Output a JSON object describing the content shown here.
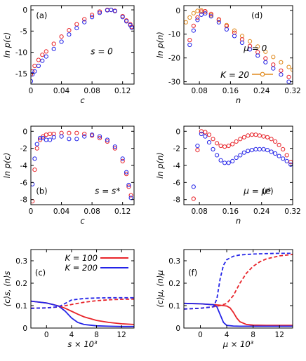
{
  "chart_data": [
    {
      "panel": "a",
      "type": "scatter",
      "label": "(a)",
      "annotation": "s = 0",
      "xlabel": "c",
      "ylabel": "ln p(c)",
      "xlim": [
        0,
        0.135
      ],
      "ylim": [
        -17.5,
        1
      ],
      "xticks": [
        "0",
        "0.04",
        "0.08",
        "0.12"
      ],
      "xtick_values": [
        0,
        0.04,
        0.08,
        0.12
      ],
      "yticks": [
        "0",
        "-5",
        "-10",
        "-15"
      ],
      "ytick_values": [
        0,
        -5,
        -10,
        -15
      ],
      "series": [
        {
          "color": "#e8242a",
          "marker": "circle",
          "x": [
            0.0,
            0.002,
            0.005,
            0.01,
            0.015,
            0.02,
            0.03,
            0.04,
            0.05,
            0.06,
            0.07,
            0.08,
            0.09,
            0.1,
            0.105,
            0.11,
            0.12,
            0.125,
            0.13,
            0.132
          ],
          "y": [
            -15.2,
            -14.5,
            -13.2,
            -11.8,
            -10.6,
            -9.8,
            -8.0,
            -6.3,
            -4.8,
            -3.4,
            -2.2,
            -1.2,
            -0.4,
            0.0,
            0.0,
            -0.2,
            -1.5,
            -2.5,
            -3.4,
            -4.0
          ]
        },
        {
          "color": "#2424e8",
          "marker": "circle",
          "x": [
            0.0,
            0.002,
            0.005,
            0.01,
            0.015,
            0.02,
            0.03,
            0.04,
            0.05,
            0.06,
            0.07,
            0.08,
            0.09,
            0.1,
            0.105,
            0.11,
            0.12,
            0.125,
            0.13,
            0.132
          ],
          "y": [
            -16.8,
            -15.2,
            -14.5,
            -13.2,
            -12.0,
            -11.0,
            -9.2,
            -7.5,
            -5.8,
            -4.3,
            -2.9,
            -1.7,
            -0.7,
            -0.1,
            0.0,
            -0.3,
            -1.7,
            -2.7,
            -3.6,
            -4.2
          ]
        }
      ]
    },
    {
      "panel": "b",
      "type": "scatter",
      "label": "(b)",
      "annotation": "s = s*",
      "xlabel": "c",
      "ylabel": "ln p(c)",
      "xlim": [
        0,
        0.135
      ],
      "ylim": [
        -8.6,
        0.6
      ],
      "xticks": [
        "0",
        "0.04",
        "0.08",
        "0.12"
      ],
      "xtick_values": [
        0,
        0.04,
        0.08,
        0.12
      ],
      "yticks": [
        "0",
        "-2",
        "-4",
        "-6",
        "-8"
      ],
      "ytick_values": [
        0,
        -2,
        -4,
        -6,
        -8
      ],
      "series": [
        {
          "color": "#e8242a",
          "marker": "circle",
          "x": [
            0.002,
            0.005,
            0.008,
            0.012,
            0.016,
            0.02,
            0.025,
            0.03,
            0.04,
            0.05,
            0.06,
            0.07,
            0.08,
            0.09,
            0.1,
            0.11,
            0.12,
            0.125,
            0.128,
            0.131
          ],
          "y": [
            -8.2,
            -4.5,
            -2.0,
            -1.0,
            -0.6,
            -0.4,
            -0.3,
            -0.3,
            -0.2,
            -0.2,
            -0.2,
            -0.3,
            -0.5,
            -0.8,
            -1.2,
            -2.0,
            -3.5,
            -5.0,
            -6.5,
            -7.5
          ]
        },
        {
          "color": "#2424e8",
          "marker": "circle",
          "x": [
            0.002,
            0.005,
            0.008,
            0.012,
            0.016,
            0.02,
            0.025,
            0.03,
            0.04,
            0.05,
            0.06,
            0.07,
            0.08,
            0.09,
            0.1,
            0.11,
            0.12,
            0.125,
            0.128,
            0.131
          ],
          "y": [
            -6.2,
            -3.2,
            -1.5,
            -0.8,
            -0.8,
            -1.0,
            -1.0,
            -0.7,
            -0.6,
            -0.9,
            -0.9,
            -0.6,
            -0.4,
            -0.6,
            -1.0,
            -1.8,
            -3.2,
            -4.8,
            -6.3,
            -7.8
          ]
        }
      ]
    },
    {
      "panel": "c",
      "type": "line",
      "label": "(c)",
      "xlabel": "s × 10³",
      "ylabel": "⟨c⟩s, ⟨n⟩s",
      "xlim": [
        -2.5,
        14
      ],
      "ylim": [
        0,
        0.35
      ],
      "xticks": [
        "0",
        "4",
        "8",
        "12"
      ],
      "xtick_values": [
        0,
        4,
        8,
        12
      ],
      "yticks": [
        "0",
        "0.1",
        "0.2",
        "0.3"
      ],
      "ytick_values": [
        0,
        0.1,
        0.2,
        0.3
      ],
      "legend": [
        {
          "label": "K = 100",
          "color": "#e8242a"
        },
        {
          "label": "K = 200",
          "color": "#2424e8"
        }
      ],
      "series": [
        {
          "color": "#e8242a",
          "style": "solid",
          "x": [
            -2.5,
            0,
            1,
            2,
            3,
            4,
            5,
            6,
            8,
            10,
            12,
            14
          ],
          "y": [
            0.12,
            0.112,
            0.105,
            0.098,
            0.088,
            0.075,
            0.062,
            0.05,
            0.034,
            0.025,
            0.019,
            0.016
          ]
        },
        {
          "color": "#2424e8",
          "style": "solid",
          "x": [
            -2.5,
            0,
            1,
            2,
            3,
            4,
            5,
            6,
            8,
            10,
            12,
            14
          ],
          "y": [
            0.12,
            0.112,
            0.105,
            0.097,
            0.075,
            0.045,
            0.025,
            0.016,
            0.01,
            0.008,
            0.007,
            0.007
          ]
        },
        {
          "color": "#e8242a",
          "style": "dashed",
          "x": [
            -2.5,
            0,
            2,
            4,
            6,
            8,
            10,
            12,
            14
          ],
          "y": [
            0.088,
            0.09,
            0.094,
            0.105,
            0.115,
            0.122,
            0.126,
            0.128,
            0.129
          ]
        },
        {
          "color": "#2424e8",
          "style": "dashed",
          "x": [
            -2.5,
            0,
            2,
            3,
            4,
            6,
            8,
            10,
            12,
            14
          ],
          "y": [
            0.088,
            0.09,
            0.095,
            0.11,
            0.125,
            0.132,
            0.134,
            0.135,
            0.135,
            0.135
          ]
        }
      ]
    },
    {
      "panel": "d",
      "type": "scatter",
      "label": "(d)",
      "annotation": "μ = 0",
      "xlabel": "n",
      "ylabel": "ln p(n)",
      "xlim": [
        0.04,
        0.32
      ],
      "ylim": [
        -31,
        2
      ],
      "xticks": [
        "0.08",
        "0.16",
        "0.24",
        "0.32"
      ],
      "xtick_values": [
        0.08,
        0.16,
        0.24,
        0.32
      ],
      "yticks": [
        "0",
        "-10",
        "-20",
        "-30"
      ],
      "ytick_values": [
        0,
        -10,
        -20,
        -30
      ],
      "legend": [
        {
          "label": "K = 20",
          "color": "#e08a1e"
        }
      ],
      "series": [
        {
          "color": "#e08a1e",
          "marker": "circle",
          "x": [
            0.045,
            0.055,
            0.065,
            0.075,
            0.085,
            0.095,
            0.11,
            0.13,
            0.15,
            0.17,
            0.19,
            0.21,
            0.23,
            0.25,
            0.27,
            0.29,
            0.31,
            0.32
          ],
          "y": [
            -5.0,
            -3.0,
            -1.2,
            -0.2,
            0.0,
            -0.5,
            -2.0,
            -4.0,
            -6.2,
            -8.5,
            -10.8,
            -13.0,
            -15.2,
            -17.4,
            -19.6,
            -21.8,
            -23.8,
            -25.0
          ]
        },
        {
          "color": "#e8242a",
          "marker": "circle",
          "x": [
            0.055,
            0.065,
            0.075,
            0.085,
            0.095,
            0.11,
            0.13,
            0.15,
            0.17,
            0.19,
            0.21,
            0.23,
            0.25,
            0.27,
            0.29,
            0.31
          ],
          "y": [
            -12.5,
            -6.5,
            -3.0,
            -0.5,
            -0.4,
            -1.5,
            -3.8,
            -6.6,
            -9.4,
            -12.2,
            -15.0,
            -17.6,
            -20.2,
            -22.8,
            -25.3,
            -28.0
          ]
        },
        {
          "color": "#2424e8",
          "marker": "circle",
          "x": [
            0.055,
            0.065,
            0.075,
            0.085,
            0.095,
            0.11,
            0.13,
            0.15,
            0.17,
            0.19,
            0.21,
            0.23,
            0.25,
            0.27,
            0.29,
            0.31
          ],
          "y": [
            -14.5,
            -8.5,
            -4.0,
            -1.8,
            -1.3,
            -2.5,
            -5.0,
            -8.0,
            -10.8,
            -13.6,
            -16.4,
            -19.0,
            -21.8,
            -24.4,
            -27.0,
            -30.0
          ]
        }
      ]
    },
    {
      "panel": "e",
      "type": "scatter",
      "label": "(e)",
      "annotation": "μ = μ*",
      "xlabel": "n",
      "ylabel": "ln p(n)",
      "xlim": [
        0.04,
        0.32
      ],
      "ylim": [
        -8.6,
        0.6
      ],
      "xticks": [
        "0.08",
        "0.16",
        "0.24",
        "0.32"
      ],
      "xtick_values": [
        0.08,
        0.16,
        0.24,
        0.32
      ],
      "yticks": [
        "0",
        "-2",
        "-4",
        "-6",
        "-8"
      ],
      "ytick_values": [
        0,
        -2,
        -4,
        -6,
        -8
      ],
      "series": [
        {
          "color": "#e8242a",
          "marker": "circle",
          "x": [
            0.065,
            0.075,
            0.085,
            0.095,
            0.105,
            0.115,
            0.125,
            0.135,
            0.145,
            0.155,
            0.165,
            0.175,
            0.185,
            0.195,
            0.205,
            0.215,
            0.225,
            0.235,
            0.245,
            0.255,
            0.265,
            0.275,
            0.285,
            0.295,
            0.305,
            0.315
          ],
          "y": [
            -7.9,
            -2.2,
            0.0,
            -0.1,
            -0.4,
            -0.9,
            -1.4,
            -1.7,
            -1.8,
            -1.7,
            -1.5,
            -1.2,
            -0.9,
            -0.7,
            -0.5,
            -0.4,
            -0.4,
            -0.5,
            -0.6,
            -0.7,
            -0.9,
            -1.2,
            -1.6,
            -2.1,
            -2.8,
            -3.6
          ]
        },
        {
          "color": "#2424e8",
          "marker": "circle",
          "x": [
            0.065,
            0.075,
            0.085,
            0.095,
            0.105,
            0.115,
            0.125,
            0.135,
            0.145,
            0.155,
            0.165,
            0.175,
            0.185,
            0.195,
            0.205,
            0.215,
            0.225,
            0.235,
            0.245,
            0.255,
            0.265,
            0.275,
            0.285,
            0.295,
            0.305,
            0.315
          ],
          "y": [
            -6.5,
            -1.7,
            -0.3,
            -0.6,
            -1.3,
            -2.1,
            -2.8,
            -3.4,
            -3.7,
            -3.7,
            -3.5,
            -3.1,
            -2.8,
            -2.5,
            -2.3,
            -2.2,
            -2.1,
            -2.1,
            -2.1,
            -2.2,
            -2.4,
            -2.6,
            -2.9,
            -3.2,
            -3.5,
            -3.9
          ]
        }
      ]
    },
    {
      "panel": "f",
      "type": "line",
      "label": "(f)",
      "xlabel": "μ × 10³",
      "ylabel": "⟨c⟩μ, ⟨n⟩μ",
      "xlim": [
        -2.5,
        14
      ],
      "ylim": [
        0,
        0.35
      ],
      "xticks": [
        "0",
        "4",
        "8",
        "12"
      ],
      "xtick_values": [
        0,
        4,
        8,
        12
      ],
      "yticks": [
        "0",
        "0.1",
        "0.2",
        "0.3"
      ],
      "ytick_values": [
        0,
        0.1,
        0.2,
        0.3
      ],
      "series": [
        {
          "color": "#e8242a",
          "style": "solid",
          "x": [
            -2.5,
            0,
            2,
            3,
            4,
            4.5,
            5,
            5.5,
            6,
            7,
            8,
            10,
            12,
            14
          ],
          "y": [
            0.11,
            0.108,
            0.104,
            0.102,
            0.098,
            0.09,
            0.07,
            0.045,
            0.028,
            0.016,
            0.013,
            0.012,
            0.012,
            0.012
          ]
        },
        {
          "color": "#2424e8",
          "style": "solid",
          "x": [
            -2.5,
            0,
            2,
            2.5,
            3,
            3.5,
            4,
            5,
            6,
            8,
            10,
            12,
            14
          ],
          "y": [
            0.11,
            0.108,
            0.104,
            0.095,
            0.06,
            0.025,
            0.012,
            0.009,
            0.008,
            0.008,
            0.008,
            0.008,
            0.008
          ]
        },
        {
          "color": "#e8242a",
          "style": "dashed",
          "x": [
            -2.5,
            0,
            2,
            3,
            4,
            5,
            6,
            7,
            8,
            9,
            10,
            12,
            14
          ],
          "y": [
            0.085,
            0.088,
            0.095,
            0.1,
            0.11,
            0.145,
            0.2,
            0.245,
            0.275,
            0.295,
            0.308,
            0.322,
            0.328
          ]
        },
        {
          "color": "#2424e8",
          "style": "dashed",
          "x": [
            -2.5,
            0,
            2,
            2.5,
            3,
            3.5,
            4,
            5,
            6,
            8,
            10,
            12,
            14
          ],
          "y": [
            0.085,
            0.088,
            0.095,
            0.13,
            0.22,
            0.28,
            0.305,
            0.32,
            0.326,
            0.33,
            0.332,
            0.333,
            0.333
          ]
        }
      ]
    }
  ]
}
